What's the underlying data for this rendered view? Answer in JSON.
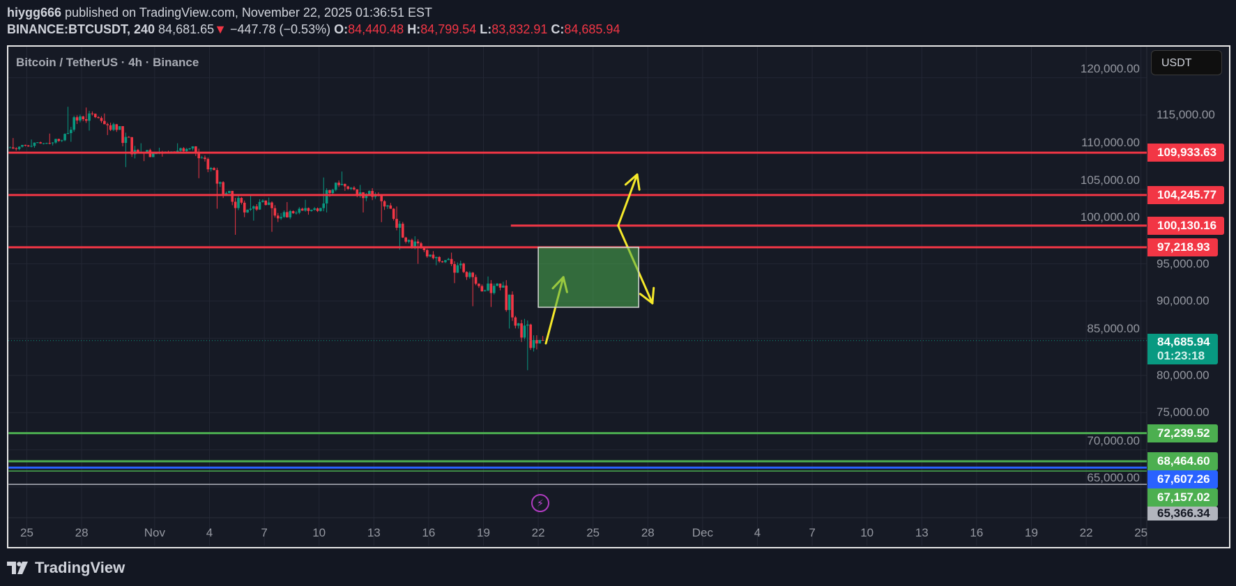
{
  "header": {
    "author": "hiygg666",
    "published_text": "published on TradingView.com, November 22, 2025 01:36:51 EST",
    "symbol": "BINANCE:BTCUSDT, 240",
    "last": "84,681.65",
    "change_arrow": "▼",
    "change": "−447.78 (−0.53%)",
    "o_label": "O:",
    "o_value": "84,440.48",
    "h_label": "H:",
    "h_value": "84,799.54",
    "l_label": "L:",
    "l_value": "83,832.91",
    "c_label": "C:",
    "c_value": "84,685.94"
  },
  "chart_title": "Bitcoin / TetherUS · 4h · Binance",
  "currency_button": "USDT",
  "footer_logo": "TradingView",
  "colors": {
    "up": "#089981",
    "down": "#f23645",
    "level_red": "#f23645",
    "level_green": "#4caf50",
    "level_blue": "#2962ff",
    "level_gray": "#b2b5be",
    "arrow": "#f5e82a",
    "zone": "#4caf50"
  },
  "chart_data": {
    "type": "candlestick",
    "interval": "4h",
    "ylim": [
      63000,
      122500
    ],
    "grid": true,
    "y_ticks": [
      120000,
      115000,
      110000,
      105000,
      100000,
      95000,
      90000,
      85000,
      80000,
      75000,
      70000,
      65000
    ],
    "y_tick_labels": [
      "120,000.00",
      "115,000.00",
      "110,000.00",
      "105,000.00",
      "100,000.00",
      "95,000.00",
      "90,000.00",
      "85,000.00",
      "80,000.00",
      "75,000.00",
      "70,000.00",
      "65,000.00"
    ],
    "x_range": [
      "2025-10-24",
      "2025-12-26"
    ],
    "x_ticks": [
      {
        "date": "2025-10-25",
        "label": "25"
      },
      {
        "date": "2025-10-28",
        "label": "28"
      },
      {
        "date": "2025-11-01",
        "label": "Nov"
      },
      {
        "date": "2025-11-04",
        "label": "4"
      },
      {
        "date": "2025-11-07",
        "label": "7"
      },
      {
        "date": "2025-11-10",
        "label": "10"
      },
      {
        "date": "2025-11-13",
        "label": "13"
      },
      {
        "date": "2025-11-16",
        "label": "16"
      },
      {
        "date": "2025-11-19",
        "label": "19"
      },
      {
        "date": "2025-11-22",
        "label": "22"
      },
      {
        "date": "2025-11-25",
        "label": "25"
      },
      {
        "date": "2025-11-28",
        "label": "28"
      },
      {
        "date": "2025-12-01",
        "label": "Dec"
      },
      {
        "date": "2025-12-04",
        "label": "4"
      },
      {
        "date": "2025-12-07",
        "label": "7"
      },
      {
        "date": "2025-12-10",
        "label": "10"
      },
      {
        "date": "2025-12-13",
        "label": "13"
      },
      {
        "date": "2025-12-16",
        "label": "16"
      },
      {
        "date": "2025-12-19",
        "label": "19"
      },
      {
        "date": "2025-12-22",
        "label": "22"
      },
      {
        "date": "2025-12-25",
        "label": "25"
      }
    ],
    "daily": [
      {
        "date": "2025-10-24",
        "o": 110600,
        "h": 111900,
        "l": 110200,
        "c": 110900
      },
      {
        "date": "2025-10-25",
        "o": 110900,
        "h": 111700,
        "l": 110600,
        "c": 111200
      },
      {
        "date": "2025-10-26",
        "o": 111200,
        "h": 112500,
        "l": 110900,
        "c": 111600
      },
      {
        "date": "2025-10-27",
        "o": 111600,
        "h": 116100,
        "l": 111400,
        "c": 114800
      },
      {
        "date": "2025-10-28",
        "o": 114800,
        "h": 116000,
        "l": 112900,
        "c": 114600
      },
      {
        "date": "2025-10-29",
        "o": 114600,
        "h": 115200,
        "l": 112300,
        "c": 113000
      },
      {
        "date": "2025-10-30",
        "o": 113000,
        "h": 113500,
        "l": 108000,
        "c": 110300
      },
      {
        "date": "2025-10-31",
        "o": 110300,
        "h": 111200,
        "l": 108800,
        "c": 109800
      },
      {
        "date": "2025-11-01",
        "o": 109800,
        "h": 110600,
        "l": 109400,
        "c": 110100
      },
      {
        "date": "2025-11-02",
        "o": 110100,
        "h": 111200,
        "l": 109900,
        "c": 110500
      },
      {
        "date": "2025-11-03",
        "o": 110500,
        "h": 110800,
        "l": 106500,
        "c": 107700
      },
      {
        "date": "2025-11-04",
        "o": 107700,
        "h": 108000,
        "l": 102400,
        "c": 104500
      },
      {
        "date": "2025-11-05",
        "o": 104500,
        "h": 104800,
        "l": 98900,
        "c": 101900
      },
      {
        "date": "2025-11-06",
        "o": 101900,
        "h": 104200,
        "l": 100800,
        "c": 103500
      },
      {
        "date": "2025-11-07",
        "o": 103500,
        "h": 103900,
        "l": 99300,
        "c": 101300
      },
      {
        "date": "2025-11-08",
        "o": 101300,
        "h": 103300,
        "l": 101000,
        "c": 102400
      },
      {
        "date": "2025-11-09",
        "o": 102400,
        "h": 103600,
        "l": 101600,
        "c": 102100
      },
      {
        "date": "2025-11-10",
        "o": 102100,
        "h": 106600,
        "l": 101900,
        "c": 105900
      },
      {
        "date": "2025-11-11",
        "o": 105900,
        "h": 107400,
        "l": 104800,
        "c": 105000
      },
      {
        "date": "2025-11-12",
        "o": 105000,
        "h": 105600,
        "l": 101900,
        "c": 104000
      },
      {
        "date": "2025-11-13",
        "o": 104000,
        "h": 104600,
        "l": 100600,
        "c": 102400
      },
      {
        "date": "2025-11-14",
        "o": 102400,
        "h": 102700,
        "l": 96900,
        "c": 98200
      },
      {
        "date": "2025-11-15",
        "o": 98200,
        "h": 98700,
        "l": 95000,
        "c": 96000
      },
      {
        "date": "2025-11-16",
        "o": 96000,
        "h": 96700,
        "l": 94800,
        "c": 95500
      },
      {
        "date": "2025-11-17",
        "o": 95500,
        "h": 96500,
        "l": 92400,
        "c": 93900
      },
      {
        "date": "2025-11-18",
        "o": 93900,
        "h": 94000,
        "l": 89300,
        "c": 91300
      },
      {
        "date": "2025-11-19",
        "o": 91300,
        "h": 93300,
        "l": 89200,
        "c": 91800
      },
      {
        "date": "2025-11-20",
        "o": 91800,
        "h": 92800,
        "l": 86300,
        "c": 87000
      },
      {
        "date": "2025-11-21",
        "o": 87000,
        "h": 87600,
        "l": 80700,
        "c": 84300
      },
      {
        "date": "2025-11-22",
        "o": 84300,
        "h": 85300,
        "l": 83800,
        "c": 84686
      }
    ],
    "current_price": {
      "value": 84685.94,
      "label": "84,685.94",
      "countdown": "01:23:18"
    },
    "levels": [
      {
        "value": 109933.63,
        "label": "109,933.63",
        "color": "#f23645",
        "from": "2025-10-24"
      },
      {
        "value": 104245.77,
        "label": "104,245.77",
        "color": "#f23645",
        "from": "2025-10-24"
      },
      {
        "value": 100130.16,
        "label": "100,130.16",
        "color": "#f23645",
        "from": "2025-11-20 12:00"
      },
      {
        "value": 97218.93,
        "label": "97,218.93",
        "color": "#f23645",
        "from": "2025-10-24"
      },
      {
        "value": 72239.52,
        "label": "72,239.52",
        "color": "#4caf50",
        "from": "2025-10-24"
      },
      {
        "value": 68464.6,
        "label": "68,464.60",
        "color": "#4caf50",
        "from": "2025-10-24"
      },
      {
        "value": 67607.26,
        "label": "67,607.26",
        "color": "#2962ff",
        "from": "2025-10-24"
      },
      {
        "value": 67157.02,
        "label": "67,157.02",
        "color": "#4caf50",
        "from": "2025-10-24"
      },
      {
        "value": 65366.34,
        "label": "65,366.34",
        "color": "#b2b5be",
        "from": "2025-10-24"
      }
    ],
    "zone": {
      "from": "2025-11-22",
      "to": "2025-11-27 12:00",
      "top": 97218.93,
      "bottom": 89160
    },
    "annotations": [
      {
        "type": "arrow",
        "points": [
          [
            "2025-11-22 10:00",
            84300
          ],
          [
            "2025-11-23 09:00",
            93200
          ]
        ]
      },
      {
        "type": "arrow",
        "points": [
          [
            "2025-11-26 09:00",
            100130
          ],
          [
            "2025-11-27 10:00",
            107000
          ]
        ]
      },
      {
        "type": "arrow",
        "points": [
          [
            "2025-11-26 09:00",
            100130
          ],
          [
            "2025-11-28 06:00",
            89700
          ]
        ]
      }
    ]
  }
}
